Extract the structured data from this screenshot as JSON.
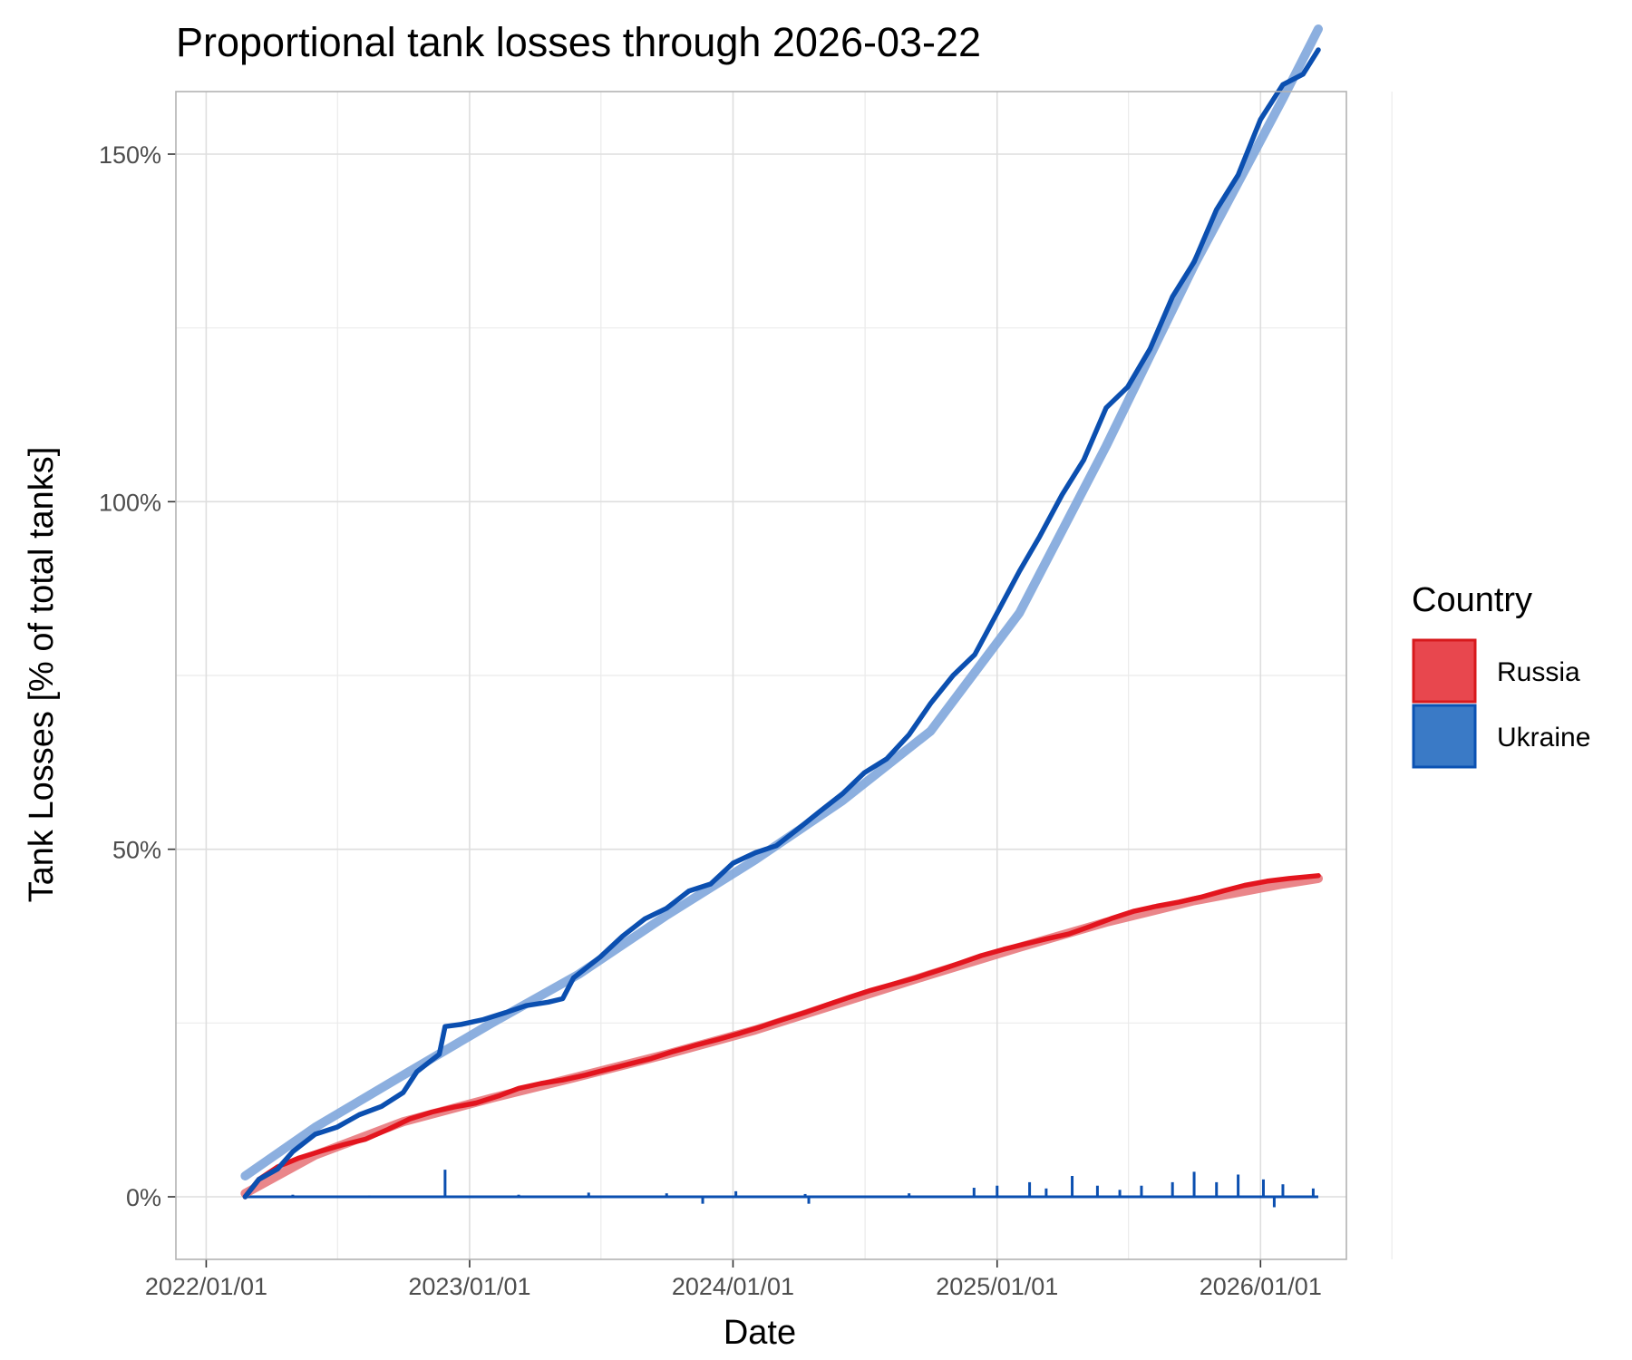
{
  "chart_data": {
    "type": "line",
    "title": "Proportional tank losses through 2026-03-22",
    "xlabel": "Date",
    "ylabel": "Tank Losses [% of total tanks]",
    "xlim": [
      "2021-11-20",
      "2026-04-30"
    ],
    "ylim": [
      -9,
      159
    ],
    "x_ticks": [
      "2022-01-01",
      "2023-01-01",
      "2024-01-01",
      "2025-01-01",
      "2026-01-01"
    ],
    "x_tick_labels": [
      "2022/01/01",
      "2023/01/01",
      "2024/01/01",
      "2025/01/01",
      "2026/01/01"
    ],
    "y_ticks": [
      0,
      50,
      100,
      150
    ],
    "y_tick_labels": [
      "0%",
      "50%",
      "100%",
      "150%"
    ],
    "grid": true,
    "legend": {
      "title": "Country",
      "position": "right",
      "entries": [
        {
          "label": "Russia",
          "color": "#e8474e",
          "border": "#d7191c"
        },
        {
          "label": "Ukraine",
          "color": "#3a7ac6",
          "border": "#0b52b3"
        }
      ]
    },
    "series": [
      {
        "name": "Russia",
        "color": "#e3151e",
        "cumulative": [
          [
            "2022-02-24",
            0
          ],
          [
            "2022-03-15",
            2.5
          ],
          [
            "2022-04-10",
            4.3
          ],
          [
            "2022-05-10",
            5.6
          ],
          [
            "2022-06-10",
            6.6
          ],
          [
            "2022-07-10",
            7.5
          ],
          [
            "2022-08-10",
            8.3
          ],
          [
            "2022-09-10",
            9.7
          ],
          [
            "2022-10-10",
            11.2
          ],
          [
            "2022-11-10",
            12.2
          ],
          [
            "2022-12-10",
            12.9
          ],
          [
            "2023-01-10",
            13.5
          ],
          [
            "2023-02-10",
            14.5
          ],
          [
            "2023-03-10",
            15.6
          ],
          [
            "2023-04-10",
            16.3
          ],
          [
            "2023-05-10",
            16.8
          ],
          [
            "2023-06-10",
            17.5
          ],
          [
            "2023-07-10",
            18.3
          ],
          [
            "2023-08-10",
            19.1
          ],
          [
            "2023-09-10",
            19.9
          ],
          [
            "2023-10-10",
            20.9
          ],
          [
            "2023-11-10",
            21.8
          ],
          [
            "2023-12-10",
            22.6
          ],
          [
            "2024-01-10",
            23.5
          ],
          [
            "2024-02-10",
            24.5
          ],
          [
            "2024-03-10",
            25.5
          ],
          [
            "2024-04-10",
            26.5
          ],
          [
            "2024-05-10",
            27.6
          ],
          [
            "2024-06-10",
            28.7
          ],
          [
            "2024-07-10",
            29.7
          ],
          [
            "2024-08-10",
            30.6
          ],
          [
            "2024-09-10",
            31.5
          ],
          [
            "2024-10-10",
            32.5
          ],
          [
            "2024-11-10",
            33.6
          ],
          [
            "2024-12-10",
            34.7
          ],
          [
            "2025-01-10",
            35.6
          ],
          [
            "2025-02-10",
            36.4
          ],
          [
            "2025-03-10",
            37.1
          ],
          [
            "2025-04-10",
            37.8
          ],
          [
            "2025-05-10",
            38.9
          ],
          [
            "2025-06-10",
            40.1
          ],
          [
            "2025-07-10",
            41.1
          ],
          [
            "2025-08-10",
            41.8
          ],
          [
            "2025-09-10",
            42.4
          ],
          [
            "2025-10-10",
            43.1
          ],
          [
            "2025-11-10",
            44.0
          ],
          [
            "2025-12-10",
            44.8
          ],
          [
            "2026-01-10",
            45.4
          ],
          [
            "2026-02-10",
            45.8
          ],
          [
            "2026-03-22",
            46.2
          ]
        ],
        "trend": [
          [
            "2022-02-24",
            0.5
          ],
          [
            "2022-06-01",
            6.0
          ],
          [
            "2022-10-01",
            10.8
          ],
          [
            "2023-02-01",
            14.2
          ],
          [
            "2023-06-01",
            17.3
          ],
          [
            "2023-10-01",
            20.5
          ],
          [
            "2024-02-01",
            24.0
          ],
          [
            "2024-06-01",
            28.0
          ],
          [
            "2024-10-01",
            32.0
          ],
          [
            "2025-02-01",
            35.9
          ],
          [
            "2025-06-01",
            39.5
          ],
          [
            "2025-10-01",
            42.6
          ],
          [
            "2026-02-01",
            45.0
          ],
          [
            "2026-03-22",
            45.8
          ]
        ],
        "daily_spikes": [
          [
            "2022-03-10",
            0.15
          ],
          [
            "2022-06-20",
            0.1
          ],
          [
            "2023-03-05",
            0.12
          ],
          [
            "2023-09-15",
            0.1
          ],
          [
            "2024-04-10",
            0.12
          ],
          [
            "2024-11-15",
            0.15
          ],
          [
            "2025-05-10",
            0.12
          ],
          [
            "2025-12-20",
            0.15
          ]
        ]
      },
      {
        "name": "Ukraine",
        "color": "#0b4fb0",
        "cumulative": [
          [
            "2022-02-24",
            0
          ],
          [
            "2022-03-15",
            2.5
          ],
          [
            "2022-04-10",
            4.0
          ],
          [
            "2022-05-01",
            6.5
          ],
          [
            "2022-06-01",
            9.0
          ],
          [
            "2022-07-01",
            10.0
          ],
          [
            "2022-08-01",
            11.8
          ],
          [
            "2022-09-01",
            13.0
          ],
          [
            "2022-10-01",
            15.0
          ],
          [
            "2022-10-20",
            18.0
          ],
          [
            "2022-11-20",
            20.5
          ],
          [
            "2022-11-28",
            24.5
          ],
          [
            "2022-12-20",
            24.8
          ],
          [
            "2023-01-20",
            25.5
          ],
          [
            "2023-02-20",
            26.5
          ],
          [
            "2023-03-20",
            27.5
          ],
          [
            "2023-04-20",
            28.0
          ],
          [
            "2023-05-10",
            28.5
          ],
          [
            "2023-05-25",
            31.5
          ],
          [
            "2023-07-01",
            34.5
          ],
          [
            "2023-08-01",
            37.5
          ],
          [
            "2023-09-01",
            40.0
          ],
          [
            "2023-10-01",
            41.5
          ],
          [
            "2023-11-01",
            44.0
          ],
          [
            "2023-12-01",
            45.0
          ],
          [
            "2024-01-01",
            48.0
          ],
          [
            "2024-02-01",
            49.5
          ],
          [
            "2024-03-01",
            50.5
          ],
          [
            "2024-04-01",
            53.0
          ],
          [
            "2024-05-01",
            55.5
          ],
          [
            "2024-06-01",
            58.0
          ],
          [
            "2024-07-01",
            61.0
          ],
          [
            "2024-08-01",
            63.0
          ],
          [
            "2024-09-01",
            66.5
          ],
          [
            "2024-10-01",
            71.0
          ],
          [
            "2024-11-01",
            75.0
          ],
          [
            "2024-12-01",
            78.0
          ],
          [
            "2025-01-01",
            84.0
          ],
          [
            "2025-02-01",
            90.0
          ],
          [
            "2025-03-01",
            95.0
          ],
          [
            "2025-04-01",
            101.0
          ],
          [
            "2025-05-01",
            106.0
          ],
          [
            "2025-06-01",
            113.5
          ],
          [
            "2025-07-01",
            116.5
          ],
          [
            "2025-08-01",
            122.0
          ],
          [
            "2025-09-01",
            129.5
          ],
          [
            "2025-10-01",
            134.5
          ],
          [
            "2025-11-01",
            142.0
          ],
          [
            "2025-12-01",
            147.0
          ],
          [
            "2026-01-01",
            155.0
          ],
          [
            "2026-02-01",
            160.0
          ],
          [
            "2026-03-01",
            161.5
          ],
          [
            "2026-03-22",
            165.0
          ]
        ],
        "trend": [
          [
            "2022-02-24",
            3.0
          ],
          [
            "2022-06-01",
            10.0
          ],
          [
            "2022-10-01",
            17.5
          ],
          [
            "2023-02-01",
            25.0
          ],
          [
            "2023-06-01",
            32.0
          ],
          [
            "2023-10-01",
            40.5
          ],
          [
            "2024-02-01",
            48.5
          ],
          [
            "2024-06-01",
            57.0
          ],
          [
            "2024-10-01",
            67.0
          ],
          [
            "2025-02-01",
            84.0
          ],
          [
            "2025-06-01",
            108.0
          ],
          [
            "2025-10-01",
            134.0
          ],
          [
            "2026-02-01",
            158.0
          ],
          [
            "2026-03-22",
            168.0
          ]
        ],
        "daily_spikes": [
          [
            "2022-05-01",
            0.3
          ],
          [
            "2022-08-15",
            0.2
          ],
          [
            "2022-11-28",
            3.9
          ],
          [
            "2023-03-10",
            0.3
          ],
          [
            "2023-06-15",
            0.6
          ],
          [
            "2023-10-01",
            0.5
          ],
          [
            "2024-01-05",
            0.8
          ],
          [
            "2024-04-10",
            0.4
          ],
          [
            "2024-09-01",
            0.5
          ],
          [
            "2024-11-30",
            1.3
          ],
          [
            "2025-01-01",
            1.6
          ],
          [
            "2025-02-15",
            2.1
          ],
          [
            "2025-03-10",
            1.2
          ],
          [
            "2025-04-15",
            3.0
          ],
          [
            "2025-05-20",
            1.6
          ],
          [
            "2025-06-20",
            1.0
          ],
          [
            "2025-07-20",
            1.6
          ],
          [
            "2025-09-01",
            2.1
          ],
          [
            "2025-10-01",
            3.6
          ],
          [
            "2025-11-01",
            2.1
          ],
          [
            "2025-12-01",
            3.2
          ],
          [
            "2026-01-05",
            2.5
          ],
          [
            "2026-02-01",
            1.8
          ],
          [
            "2026-03-15",
            1.2
          ]
        ],
        "daily_dips": [
          [
            "2023-11-20",
            -1.0
          ],
          [
            "2024-04-15",
            -1.0
          ],
          [
            "2026-01-20",
            -1.5
          ]
        ]
      }
    ]
  }
}
